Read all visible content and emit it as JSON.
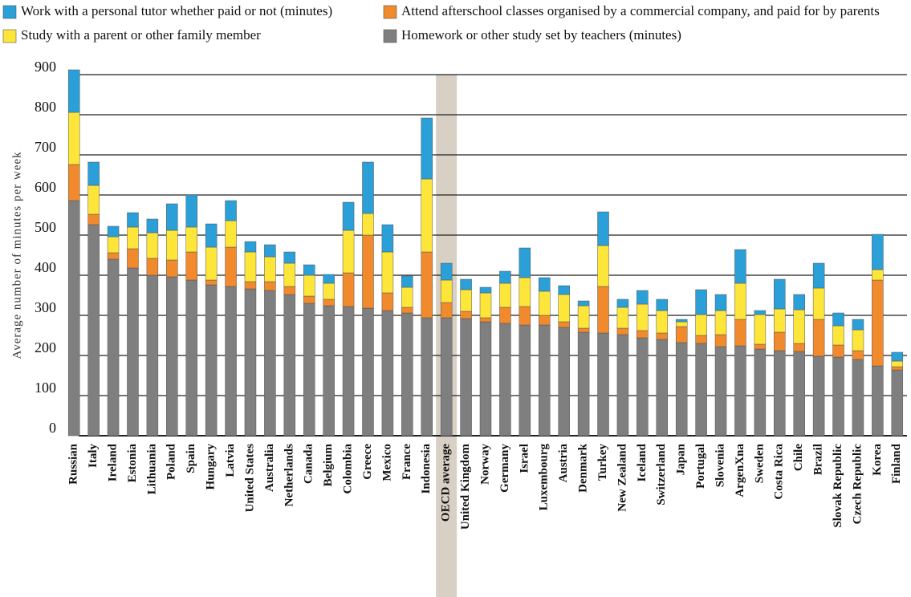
{
  "chart_data": {
    "type": "stacked_bar",
    "y_label": "Average number of minutes per week",
    "categories": [
      "Russian",
      "Italy",
      "Ireland",
      "Estonia",
      "Lithuania",
      "Poland",
      "Spain",
      "Hungary",
      "Latvia",
      "United States",
      "Australia",
      "Netherlands",
      "Canada",
      "Belgium",
      "Colombia",
      "Greece",
      "Mexico",
      "France",
      "Indonesia",
      "OECD average",
      "United Kingdom",
      "Norway",
      "Germany",
      "Israel",
      "Luxembourg",
      "Austria",
      "Denmark",
      "Turkey",
      "New Zealand",
      "Iceland",
      "Switzerland",
      "Japan",
      "Portugal",
      "Slovenia",
      "ArgenXna",
      "Sweden",
      "Costa Rica",
      "Chile",
      "Brazil",
      "Slovak Republic",
      "Czech Republic",
      "Korea",
      "Finland"
    ],
    "series": [
      {
        "name": "Homework or other study set by teachers (minutes)",
        "color": "#7f7f7f",
        "values": [
          586,
          526,
          440,
          418,
          400,
          396,
          388,
          376,
          372,
          366,
          362,
          352,
          330,
          324,
          322,
          318,
          312,
          306,
          294,
          294,
          292,
          284,
          280,
          276,
          276,
          270,
          258,
          256,
          252,
          244,
          240,
          232,
          230,
          222,
          224,
          216,
          212,
          210,
          198,
          196,
          190,
          174,
          164
        ]
      },
      {
        "name": "Attend afterschool classes organised by a commercial company, and paid for by parents",
        "color": "#f08a2c",
        "values": [
          90,
          26,
          16,
          48,
          42,
          42,
          70,
          12,
          98,
          18,
          22,
          20,
          18,
          16,
          84,
          182,
          44,
          14,
          164,
          38,
          18,
          10,
          40,
          46,
          24,
          14,
          10,
          116,
          16,
          18,
          16,
          40,
          20,
          30,
          66,
          12,
          46,
          20,
          92,
          30,
          22,
          214,
          8
        ]
      },
      {
        "name": "Study with a parent or other family member",
        "color": "#fde53a",
        "values": [
          130,
          72,
          40,
          54,
          64,
          74,
          62,
          82,
          66,
          74,
          62,
          58,
          52,
          40,
          106,
          54,
          102,
          50,
          182,
          56,
          54,
          62,
          60,
          72,
          60,
          68,
          56,
          102,
          52,
          66,
          56,
          12,
          52,
          60,
          90,
          74,
          58,
          84,
          78,
          48,
          52,
          26,
          14
        ]
      },
      {
        "name": "Work with a personal tutor whether paid or not (minutes)",
        "color": "#2a9fd8",
        "values": [
          106,
          58,
          26,
          36,
          34,
          66,
          80,
          58,
          50,
          26,
          30,
          28,
          26,
          22,
          70,
          128,
          68,
          28,
          152,
          42,
          26,
          14,
          30,
          74,
          34,
          22,
          12,
          84,
          20,
          34,
          28,
          6,
          62,
          40,
          84,
          10,
          74,
          38,
          62,
          32,
          26,
          88,
          22
        ]
      }
    ],
    "ylim": [
      0,
      900
    ],
    "yticks": [
      0,
      100,
      200,
      300,
      400,
      500,
      600,
      700,
      800,
      900
    ],
    "grid": true
  }
}
